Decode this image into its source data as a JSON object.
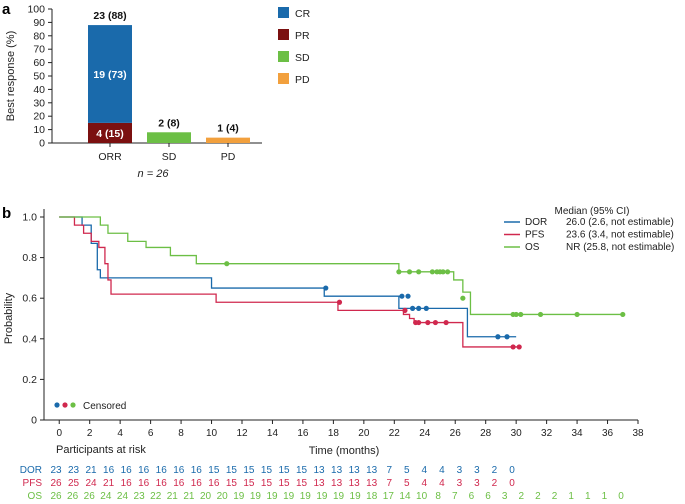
{
  "panel_a_label": "a",
  "panel_b_label": "b",
  "chart_data": [
    {
      "type": "bar",
      "stacked": true,
      "ylabel": "Best response (%)",
      "ylim": [
        0,
        100
      ],
      "yticks": [
        0,
        10,
        20,
        30,
        40,
        50,
        60,
        70,
        80,
        90,
        100
      ],
      "categories": [
        "ORR",
        "SD",
        "PD"
      ],
      "note": "n = 26",
      "series": [
        {
          "name": "PR",
          "color": "#7b1010",
          "values": [
            15,
            null,
            null
          ],
          "labels": [
            "4 (15)",
            "",
            ""
          ]
        },
        {
          "name": "CR",
          "color": "#1a6aab",
          "values": [
            73,
            null,
            null
          ],
          "labels": [
            "19 (73)",
            "",
            ""
          ]
        },
        {
          "name": "SD",
          "color": "#6cbf45",
          "values": [
            null,
            8,
            null
          ],
          "labels": [
            "",
            "",
            ""
          ]
        },
        {
          "name": "PD",
          "color": "#f2a03d",
          "values": [
            null,
            null,
            4
          ],
          "labels": [
            "",
            "",
            ""
          ]
        }
      ],
      "totals": [
        88,
        8,
        4
      ],
      "total_labels": [
        "23 (88)",
        "2 (8)",
        "1 (4)"
      ],
      "legend": [
        {
          "name": "CR",
          "color": "#1a6aab"
        },
        {
          "name": "PR",
          "color": "#7b1010"
        },
        {
          "name": "SD",
          "color": "#6cbf45"
        },
        {
          "name": "PD",
          "color": "#f2a03d"
        }
      ],
      "legend_position": "right"
    },
    {
      "type": "line",
      "step": true,
      "xlabel": "Time (months)",
      "ylabel": "Probability",
      "xlim": [
        -1,
        38
      ],
      "ylim": [
        0,
        1.0
      ],
      "xticks": [
        0,
        2,
        4,
        6,
        8,
        10,
        12,
        14,
        16,
        18,
        20,
        22,
        24,
        26,
        28,
        30,
        32,
        34,
        36,
        38
      ],
      "yticks": [
        0,
        0.2,
        0.4,
        0.6,
        0.8,
        1.0
      ],
      "ytick_labels": [
        "0",
        "0.2",
        "0.4",
        "0.6",
        "0.8",
        "1.0"
      ],
      "legend_header": "Median (95% CI)",
      "legend_position": "top-right",
      "censored_label": "Censored",
      "series": [
        {
          "name": "DOR",
          "median": "26.0 (2.6, not estimable)",
          "color": "#1a6aab",
          "x": [
            0,
            1.5,
            2.1,
            2.5,
            2.7,
            10.0,
            17.4,
            22.3,
            22.8,
            26.8,
            30.0
          ],
          "y": [
            1.0,
            0.96,
            0.87,
            0.74,
            0.7,
            0.65,
            0.61,
            0.55,
            0.55,
            0.41,
            0.41
          ],
          "censored_x": [
            17.5,
            22.5,
            22.9,
            23.2,
            23.6,
            24.1,
            28.8,
            29.4
          ],
          "censored_y": [
            0.65,
            0.61,
            0.61,
            0.55,
            0.55,
            0.55,
            0.41,
            0.41
          ]
        },
        {
          "name": "PFS",
          "median": "23.6 (3.4, not estimable)",
          "color": "#d0284e",
          "x": [
            0,
            1.0,
            1.6,
            2.1,
            2.6,
            3.0,
            3.2,
            3.4,
            10.3,
            18.3,
            22.6,
            23.0,
            23.3,
            26.5,
            30.2
          ],
          "y": [
            1.0,
            0.96,
            0.92,
            0.88,
            0.85,
            0.77,
            0.69,
            0.62,
            0.58,
            0.54,
            0.52,
            0.5,
            0.48,
            0.36,
            0.36
          ],
          "censored_x": [
            18.4,
            22.7,
            23.4,
            23.6,
            24.2,
            24.7,
            25.4,
            29.8,
            30.2
          ],
          "censored_y": [
            0.58,
            0.54,
            0.48,
            0.48,
            0.48,
            0.48,
            0.48,
            0.36,
            0.36
          ],
          "end_x": 30.3
        },
        {
          "name": "OS",
          "median": "NR (25.8, not estimable)",
          "color": "#6cbf45",
          "x": [
            0,
            2.7,
            3.2,
            4.5,
            5.7,
            7.3,
            9.0,
            10.0,
            22.3,
            25.9,
            26.5,
            27.0,
            37.0
          ],
          "y": [
            1.0,
            0.96,
            0.92,
            0.88,
            0.85,
            0.81,
            0.77,
            0.77,
            0.73,
            0.69,
            0.63,
            0.52,
            0.52
          ],
          "censored_x": [
            11.0,
            22.3,
            23.0,
            23.6,
            24.5,
            24.8,
            25.0,
            25.2,
            25.5,
            26.5,
            29.8,
            30.0,
            30.3,
            31.6,
            34.0,
            37.0
          ],
          "censored_y": [
            0.77,
            0.73,
            0.73,
            0.73,
            0.73,
            0.73,
            0.73,
            0.73,
            0.73,
            0.6,
            0.52,
            0.52,
            0.52,
            0.52,
            0.52,
            0.52
          ]
        }
      ],
      "at_risk": {
        "title": "Participants at risk",
        "rows": [
          {
            "name": "DOR",
            "color": "#1a6aab",
            "values": [
              "23",
              "23",
              "21",
              "16",
              "16",
              "16",
              "16",
              "16",
              "16",
              "15",
              "15",
              "15",
              "15",
              "15",
              "15",
              "13",
              "13",
              "13",
              "13",
              "7",
              "5",
              "4",
              "4",
              "3",
              "3",
              "2",
              "0"
            ]
          },
          {
            "name": "PFS",
            "color": "#d0284e",
            "values": [
              "26",
              "25",
              "24",
              "21",
              "16",
              "16",
              "16",
              "16",
              "16",
              "16",
              "15",
              "15",
              "15",
              "15",
              "15",
              "13",
              "13",
              "13",
              "13",
              "7",
              "5",
              "4",
              "4",
              "3",
              "3",
              "2",
              "0"
            ]
          },
          {
            "name": "OS",
            "color": "#6cbf45",
            "values": [
              "26",
              "26",
              "26",
              "24",
              "24",
              "23",
              "22",
              "21",
              "21",
              "20",
              "20",
              "19",
              "19",
              "19",
              "19",
              "19",
              "19",
              "19",
              "19",
              "18",
              "17",
              "14",
              "10",
              "8",
              "7",
              "6",
              "6",
              "3",
              "2",
              "2",
              "2",
              "1",
              "1",
              "1",
              "0"
            ]
          }
        ]
      }
    }
  ]
}
